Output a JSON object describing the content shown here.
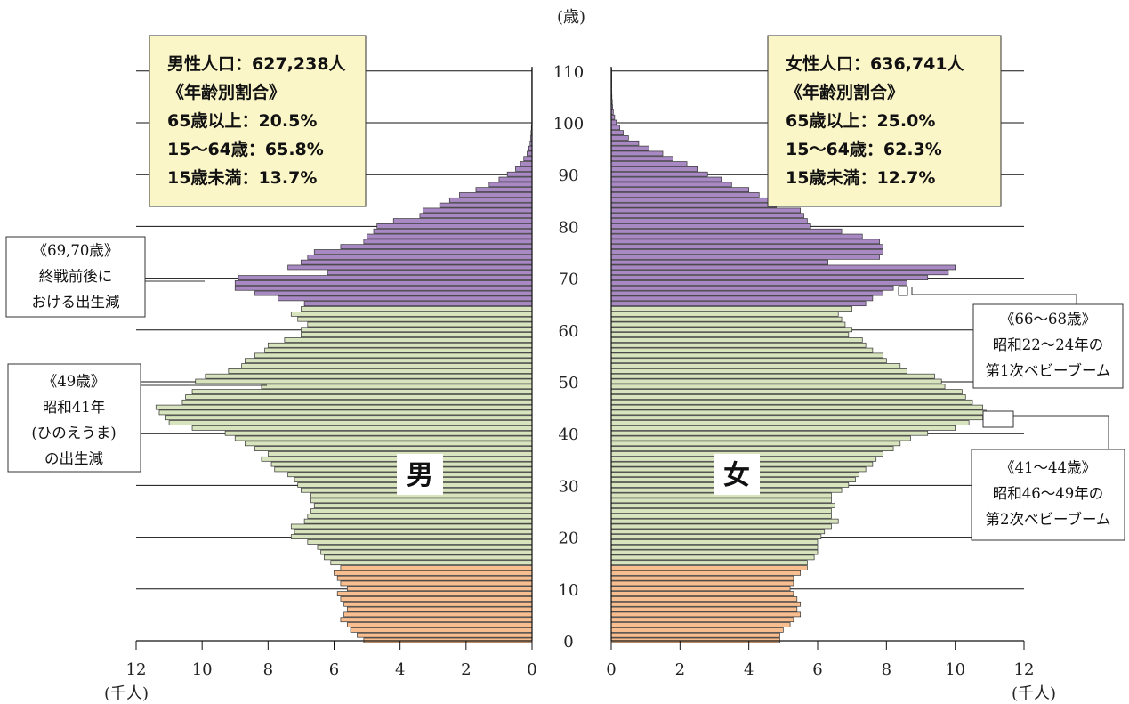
{
  "chart_data": {
    "type": "bar",
    "orientation": "horizontal",
    "subtype": "population-pyramid",
    "y_unit_label": "(歳)",
    "x_unit_label": "(千人)",
    "x_ticks": [
      12,
      10,
      8,
      6,
      4,
      2,
      0
    ],
    "x_range": [
      0,
      12
    ],
    "y_ticks": [
      0,
      10,
      20,
      30,
      40,
      50,
      60,
      70,
      80,
      90,
      100,
      110
    ],
    "y_range": [
      0,
      110
    ],
    "ages": [
      0,
      1,
      2,
      3,
      4,
      5,
      6,
      7,
      8,
      9,
      10,
      11,
      12,
      13,
      14,
      15,
      16,
      17,
      18,
      19,
      20,
      21,
      22,
      23,
      24,
      25,
      26,
      27,
      28,
      29,
      30,
      31,
      32,
      33,
      34,
      35,
      36,
      37,
      38,
      39,
      40,
      41,
      42,
      43,
      44,
      45,
      46,
      47,
      48,
      49,
      50,
      51,
      52,
      53,
      54,
      55,
      56,
      57,
      58,
      59,
      60,
      61,
      62,
      63,
      64,
      65,
      66,
      67,
      68,
      69,
      70,
      71,
      72,
      73,
      74,
      75,
      76,
      77,
      78,
      79,
      80,
      81,
      82,
      83,
      84,
      85,
      86,
      87,
      88,
      89,
      90,
      91,
      92,
      93,
      94,
      95,
      96,
      97,
      98,
      99,
      100,
      101,
      102,
      103,
      104,
      105,
      106,
      107,
      108,
      109,
      110
    ],
    "age_groups": [
      {
        "name": "15歳未満",
        "from": 0,
        "to": 14,
        "color": "#f9be8f"
      },
      {
        "name": "15〜64歳",
        "from": 15,
        "to": 64,
        "color": "#d7e4bd"
      },
      {
        "name": "65歳以上",
        "from": 65,
        "to": 110,
        "color": "#a989c3"
      }
    ],
    "series": [
      {
        "name": "男",
        "values": [
          5.1,
          5.3,
          5.5,
          5.6,
          5.8,
          5.7,
          5.6,
          5.7,
          5.8,
          5.9,
          5.6,
          5.8,
          5.9,
          6.0,
          5.8,
          6.1,
          6.3,
          6.4,
          6.5,
          6.8,
          7.3,
          7.2,
          7.3,
          6.9,
          6.8,
          6.7,
          6.6,
          6.7,
          6.7,
          7.0,
          7.1,
          7.2,
          7.4,
          7.8,
          7.9,
          8.2,
          8.0,
          8.4,
          8.7,
          9.0,
          9.3,
          10.3,
          11.0,
          11.1,
          11.3,
          11.4,
          10.6,
          10.5,
          10.3,
          8.2,
          10.2,
          9.9,
          9.2,
          8.8,
          8.7,
          8.4,
          8.1,
          8.0,
          7.5,
          7.0,
          7.0,
          6.8,
          7.1,
          7.3,
          7.0,
          6.9,
          7.7,
          8.4,
          9.0,
          9.0,
          8.9,
          6.2,
          7.4,
          7.0,
          6.8,
          6.6,
          5.8,
          5.1,
          5.0,
          4.8,
          4.7,
          4.2,
          3.4,
          3.3,
          2.8,
          2.5,
          2.2,
          1.7,
          1.3,
          1.0,
          0.75,
          0.5,
          0.35,
          0.25,
          0.15,
          0.1,
          0.06,
          0.04,
          0.03,
          0.02,
          0.01,
          0.01,
          0.01,
          0.01,
          0.01,
          0.01,
          0.01,
          0.01,
          0.01,
          0.01,
          0.01
        ]
      },
      {
        "name": "女",
        "values": [
          4.9,
          4.9,
          5.0,
          5.2,
          5.3,
          5.5,
          5.4,
          5.5,
          5.4,
          5.3,
          5.2,
          5.3,
          5.3,
          5.5,
          5.7,
          5.7,
          5.9,
          6.0,
          6.0,
          6.0,
          6.1,
          6.2,
          6.4,
          6.6,
          6.4,
          6.4,
          6.5,
          6.4,
          6.4,
          6.7,
          6.9,
          7.1,
          7.2,
          7.4,
          7.6,
          7.7,
          7.9,
          8.2,
          8.4,
          8.7,
          9.2,
          10.0,
          10.4,
          10.8,
          10.9,
          10.8,
          10.5,
          10.3,
          10.2,
          9.7,
          9.6,
          9.4,
          8.6,
          8.4,
          8.0,
          7.9,
          7.6,
          7.4,
          7.3,
          6.9,
          7.0,
          6.8,
          6.7,
          6.6,
          7.0,
          7.4,
          7.6,
          7.9,
          8.2,
          8.6,
          9.2,
          9.8,
          10.0,
          6.3,
          7.8,
          7.9,
          7.9,
          7.8,
          7.3,
          6.7,
          5.8,
          5.7,
          5.6,
          5.5,
          4.8,
          4.6,
          4.3,
          4.0,
          3.5,
          3.2,
          2.8,
          2.5,
          2.2,
          1.8,
          1.5,
          1.1,
          0.8,
          0.5,
          0.35,
          0.25,
          0.15,
          0.1,
          0.06,
          0.04,
          0.03,
          0.02,
          0.01,
          0.01,
          0.01,
          0.01,
          0.01
        ]
      }
    ]
  },
  "labels": {
    "male": "男",
    "female": "女"
  },
  "male_box": {
    "lines": [
      "男性人口：627,238人",
      "《年齢別割合》",
      "65歳以上：20.5%",
      "15〜64歳：65.8%",
      "15歳未満：13.7%"
    ]
  },
  "female_box": {
    "lines": [
      "女性人口：636,741人",
      "《年齢別割合》",
      "65歳以上：25.0%",
      "15〜64歳：62.3%",
      "15歳未満：12.7%"
    ]
  },
  "annotations": {
    "age_69_70": [
      "《69,70歳》",
      "終戦前後に",
      "おける出生減"
    ],
    "age_49": [
      "《49歳》",
      "昭和41年",
      "(ひのえうま)",
      "の出生減"
    ],
    "age_66_68": [
      "《66〜68歳》",
      "昭和22〜24年の",
      "第1次ベビーブーム"
    ],
    "age_41_44": [
      "《41〜44歳》",
      "昭和46〜49年の",
      "第2次ベビーブーム"
    ]
  },
  "colors": {
    "young": "#f9be8f",
    "working": "#d7e4bd",
    "elderly": "#a989c3",
    "info_box": "#fbf6c8",
    "bar_edge": "#333333"
  }
}
